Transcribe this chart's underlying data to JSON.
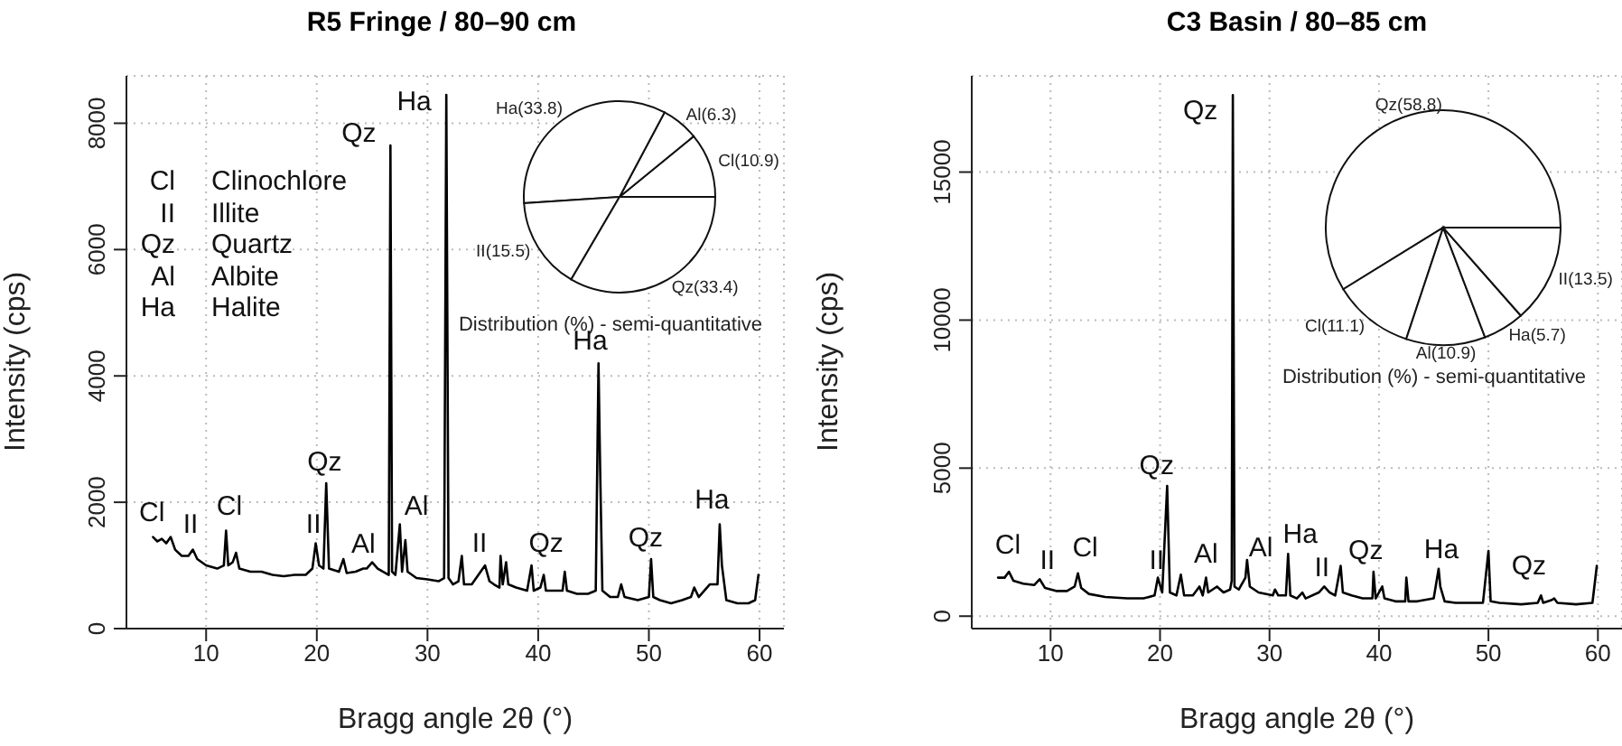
{
  "chart_data": [
    {
      "type": "line",
      "title": "R5 Fringe / 80–90 cm",
      "xlabel": "Bragg angle 2θ (°)",
      "ylabel": "Intensity (cps)",
      "xlim": [
        2.8,
        62.2
      ],
      "ylim": [
        0,
        8750
      ],
      "xticks": [
        10,
        20,
        30,
        40,
        50,
        60
      ],
      "yticks": [
        0,
        2000,
        4000,
        6000,
        8000
      ],
      "grid": true,
      "marker": "none",
      "x": [
        5.2,
        5.6,
        6.0,
        6.4,
        6.8,
        7.2,
        7.8,
        8.4,
        8.8,
        9.2,
        10,
        11,
        11.6,
        11.8,
        12.0,
        12.4,
        12.7,
        13.0,
        14,
        15,
        16,
        17,
        18,
        19,
        19.6,
        19.9,
        20.2,
        20.6,
        20.85,
        21.1,
        22,
        22.4,
        22.7,
        23.5,
        24.2,
        24.5,
        25,
        25.5,
        26.0,
        26.5,
        26.65,
        26.8,
        27.1,
        27.5,
        27.7,
        28.0,
        28.2,
        29,
        30,
        31,
        31.5,
        31.7,
        31.9,
        32.3,
        32.8,
        33.1,
        33.3,
        34,
        34.8,
        35.2,
        35.6,
        36,
        36.5,
        36.6,
        36.8,
        37.1,
        37.3,
        38,
        39,
        39.4,
        39.6,
        40.2,
        40.5,
        40.7,
        41,
        42.2,
        42.4,
        42.6,
        43.5,
        44.5,
        45.2,
        45.45,
        45.6,
        45.8,
        46.5,
        47.2,
        47.5,
        47.8,
        49,
        50.0,
        50.2,
        50.4,
        51,
        52,
        53,
        53.8,
        54.1,
        54.5,
        55,
        55.5,
        56.2,
        56.4,
        56.6,
        57,
        58,
        59,
        59.6,
        59.9
      ],
      "series": [
        {
          "color": "#000000",
          "values": [
            1450,
            1380,
            1420,
            1350,
            1450,
            1250,
            1150,
            1150,
            1250,
            1100,
            1000,
            950,
            1000,
            1550,
            1000,
            1050,
            1200,
            950,
            900,
            900,
            850,
            830,
            850,
            850,
            950,
            1350,
            1000,
            950,
            2300,
            950,
            900,
            1100,
            880,
            900,
            950,
            950,
            1050,
            950,
            900,
            850,
            7650,
            900,
            850,
            1650,
            900,
            1400,
            900,
            800,
            780,
            750,
            800,
            8450,
            800,
            700,
            750,
            1150,
            700,
            700,
            900,
            1000,
            750,
            700,
            650,
            1150,
            700,
            1050,
            700,
            650,
            600,
            1000,
            600,
            650,
            850,
            600,
            600,
            600,
            900,
            600,
            550,
            550,
            600,
            4200,
            2500,
            600,
            500,
            500,
            700,
            500,
            450,
            500,
            1100,
            500,
            450,
            400,
            450,
            500,
            650,
            500,
            600,
            700,
            700,
            1650,
            1000,
            450,
            400,
            400,
            450,
            850
          ]
        }
      ],
      "annotations": [
        {
          "text": "Cl",
          "x": 5.2,
          "y": 1450
        },
        {
          "text": "II",
          "x": 8.8,
          "y": 1250
        },
        {
          "text": "Cl",
          "x": 11.8,
          "y": 1550
        },
        {
          "text": "II",
          "x": 19.9,
          "y": 1350
        },
        {
          "text": "Qz",
          "x": 20.85,
          "y": 2300
        },
        {
          "text": "Al",
          "x": 25,
          "y": 1050
        },
        {
          "text": "Qz",
          "x": 26.65,
          "y": 7650
        },
        {
          "text": "Ha",
          "x": 31.7,
          "y": 8450
        },
        {
          "text": "Al",
          "x": 28.0,
          "y": 1400
        },
        {
          "text": "II",
          "x": 35.2,
          "y": 1000
        },
        {
          "text": "Qz",
          "x": 39.4,
          "y": 1000
        },
        {
          "text": "Ha",
          "x": 45.45,
          "y": 4200
        },
        {
          "text": "Qz",
          "x": 50.2,
          "y": 1100
        },
        {
          "text": "Ha",
          "x": 56.4,
          "y": 1650
        },
        "Cl Clinochlore",
        "II Illite",
        "Qz Quartz",
        "Al Albite",
        "Ha Halite"
      ]
    },
    {
      "type": "pie",
      "title": "Distribution (%) - semi-quantitative",
      "categories": [
        "Cl(10.9)",
        "Al(6.3)",
        "Ha(33.8)",
        "II(15.5)",
        "Qz(33.4)"
      ],
      "values": [
        10.9,
        6.3,
        33.8,
        15.5,
        33.4
      ],
      "colors": [
        "#ffffff",
        "#ffffff",
        "#ffffff",
        "#ffffff",
        "#ffffff"
      ]
    },
    {
      "type": "line",
      "title": "C3 Basin / 80–85 cm",
      "xlabel": "Bragg angle 2θ (°)",
      "ylabel": "Intensity (cps)",
      "xlim": [
        2.8,
        62.2
      ],
      "ylim": [
        -420,
        18250
      ],
      "xticks": [
        10,
        20,
        30,
        40,
        50,
        60
      ],
      "yticks": [
        0,
        5000,
        10000,
        15000
      ],
      "grid": true,
      "marker": "none",
      "x": [
        5.2,
        5.8,
        6.2,
        6.6,
        7.5,
        8.5,
        9.0,
        9.5,
        10.5,
        11.5,
        12.2,
        12.5,
        12.8,
        13.5,
        15,
        17,
        18.5,
        19.5,
        19.8,
        20.2,
        20.65,
        20.9,
        21.5,
        21.9,
        22.2,
        23,
        23.6,
        23.9,
        24.2,
        24.4,
        25.2,
        25.8,
        26.4,
        26.55,
        26.65,
        26.8,
        27.2,
        27.8,
        27.95,
        28.2,
        29,
        30.3,
        30.5,
        30.8,
        31.5,
        31.7,
        31.9,
        32.5,
        33.0,
        33.3,
        34.5,
        35.0,
        35.5,
        36.0,
        36.5,
        36.7,
        37.5,
        38.5,
        39.4,
        39.5,
        39.7,
        40.3,
        40.5,
        41.5,
        42.4,
        42.5,
        42.7,
        43.5,
        45,
        45.45,
        45.6,
        46,
        47,
        48,
        49.5,
        50.0,
        50.2,
        51,
        53,
        54.5,
        54.8,
        55,
        55.8,
        56,
        56.3,
        58,
        59.5,
        59.9
      ],
      "series": [
        {
          "color": "#000000",
          "values": [
            1300,
            1300,
            1500,
            1200,
            1100,
            1050,
            1250,
            950,
            850,
            850,
            1000,
            1450,
            950,
            750,
            650,
            600,
            600,
            700,
            1300,
            800,
            4400,
            800,
            700,
            1400,
            700,
            700,
            1000,
            700,
            1300,
            800,
            1000,
            800,
            900,
            1200,
            17600,
            1000,
            900,
            1300,
            1900,
            1000,
            800,
            700,
            900,
            700,
            700,
            2100,
            700,
            600,
            800,
            600,
            800,
            1000,
            800,
            700,
            1700,
            800,
            700,
            600,
            600,
            1500,
            600,
            1000,
            600,
            500,
            500,
            1300,
            500,
            500,
            600,
            1600,
            1000,
            500,
            450,
            450,
            450,
            2200,
            500,
            450,
            400,
            450,
            700,
            450,
            550,
            600,
            450,
            400,
            450,
            1700
          ]
        }
      ],
      "annotations": [
        {
          "text": "Cl",
          "x": 6.2,
          "y": 1500
        },
        {
          "text": "II",
          "x": 9.0,
          "y": 1250
        },
        {
          "text": "Cl",
          "x": 12.5,
          "y": 1450
        },
        {
          "text": "II",
          "x": 19.8,
          "y": 1300
        },
        {
          "text": "Qz",
          "x": 20.65,
          "y": 4400
        },
        {
          "text": "Al",
          "x": 24.2,
          "y": 1300
        },
        {
          "text": "Qz",
          "x": 26.65,
          "y": 17600
        },
        {
          "text": "Al",
          "x": 27.95,
          "y": 1900
        },
        {
          "text": "Ha",
          "x": 31.7,
          "y": 2100
        },
        {
          "text": "II",
          "x": 35.0,
          "y": 1000
        },
        {
          "text": "Qz",
          "x": 39.5,
          "y": 1500
        },
        {
          "text": "Ha",
          "x": 45.45,
          "y": 1600
        },
        {
          "text": "Qz",
          "x": 54.8,
          "y": 700
        }
      ]
    },
    {
      "type": "pie",
      "title": "Distribution (%) - semi-quantitative",
      "categories": [
        "Qz(58.8)",
        "Cl(11.1)",
        "Al(10.9)",
        "Ha(5.7)",
        "II(13.5)"
      ],
      "values": [
        58.8,
        11.1,
        10.9,
        5.7,
        13.5
      ],
      "colors": [
        "#ffffff",
        "#ffffff",
        "#ffffff",
        "#ffffff",
        "#ffffff"
      ]
    }
  ]
}
